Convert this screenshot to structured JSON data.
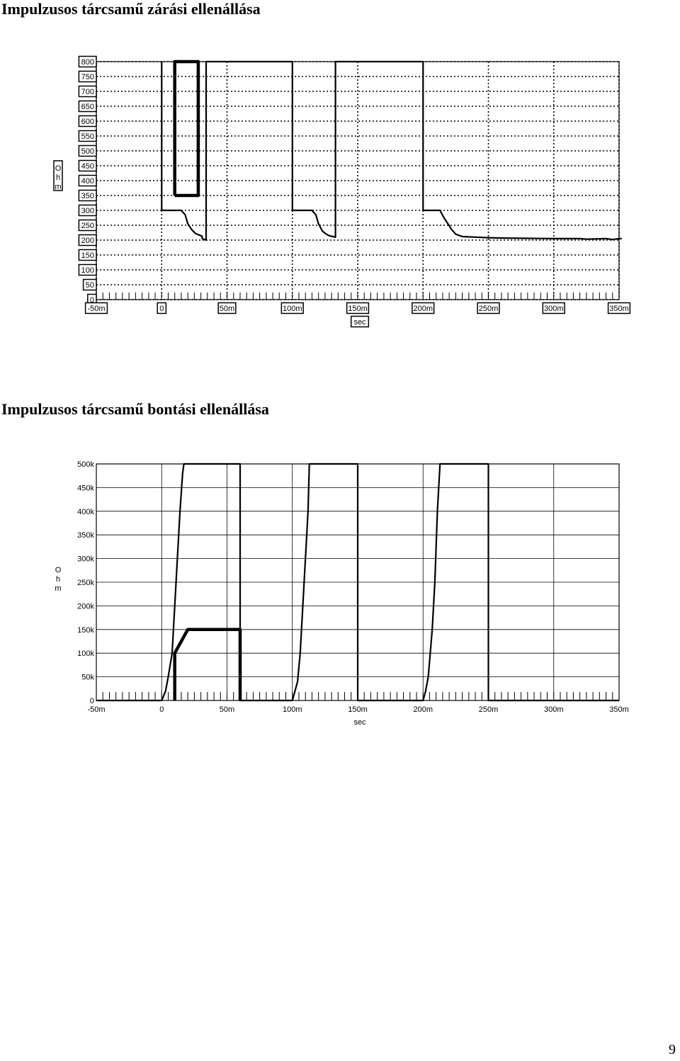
{
  "page": {
    "heading_1": "Impulzusos tárcsamű zárási ellenállása",
    "heading_2": "Impulzusos tárcsamű bontási ellenállása",
    "page_number": "9"
  },
  "chart_data": [
    {
      "type": "line",
      "title": "",
      "xlabel": "sec",
      "ylabel": "Ohm",
      "ylabel_chars": [
        "O",
        "h",
        "m"
      ],
      "xlim": [
        -50,
        350
      ],
      "ylim": [
        0,
        800
      ],
      "x_unit": "ms",
      "xticks": [
        -50,
        0,
        50,
        100,
        150,
        200,
        250,
        300,
        350
      ],
      "xtick_labels": [
        "-50m",
        "0",
        "50m",
        "100m",
        "150m",
        "200m",
        "250m",
        "300m",
        "350m"
      ],
      "yticks": [
        0,
        50,
        100,
        150,
        200,
        250,
        300,
        350,
        400,
        450,
        500,
        550,
        600,
        650,
        700,
        750,
        800
      ],
      "ytick_labels": [
        "0",
        "50",
        "100",
        "150",
        "200",
        "250",
        "300",
        "350",
        "400",
        "450",
        "500",
        "550",
        "600",
        "650",
        "700",
        "750",
        "800"
      ],
      "grid": true,
      "grid_style": "dotted",
      "labels_boxed": true,
      "series": [
        {
          "style": "thin",
          "color": "#000000",
          "x": [
            0,
            0,
            15,
            18,
            20,
            23,
            26,
            28,
            30,
            31,
            31,
            34,
            34,
            100,
            100,
            115,
            118,
            120,
            123,
            126,
            128,
            131,
            133,
            133,
            200,
            200,
            213,
            216,
            219,
            222,
            225,
            230,
            240,
            250,
            260,
            280,
            300,
            320,
            325,
            340,
            345,
            350,
            352
          ],
          "y": [
            800,
            300,
            300,
            285,
            255,
            235,
            222,
            218,
            215,
            213,
            205,
            200,
            800,
            800,
            300,
            300,
            285,
            255,
            230,
            220,
            215,
            212,
            210,
            800,
            800,
            300,
            300,
            275,
            255,
            235,
            220,
            212,
            210,
            208,
            207,
            206,
            205,
            205,
            203,
            205,
            202,
            205,
            205
          ]
        },
        {
          "style": "thick",
          "color": "#000000",
          "x": [
            10,
            10,
            28,
            28,
            10
          ],
          "y": [
            350,
            800,
            800,
            350,
            350
          ]
        }
      ]
    },
    {
      "type": "line",
      "title": "",
      "xlabel": "sec",
      "ylabel": "Ohm",
      "ylabel_chars": [
        "O",
        "h",
        "m"
      ],
      "xlim": [
        -50,
        350
      ],
      "ylim": [
        0,
        500
      ],
      "y_unit": "kOhm",
      "x_unit": "ms",
      "xticks": [
        -50,
        0,
        50,
        100,
        150,
        200,
        250,
        300,
        350
      ],
      "xtick_labels": [
        "-50m",
        "0",
        "50m",
        "100m",
        "150m",
        "200m",
        "250m",
        "300m",
        "350m"
      ],
      "yticks": [
        0,
        50,
        100,
        150,
        200,
        250,
        300,
        350,
        400,
        450,
        500
      ],
      "ytick_labels": [
        "0",
        "50k",
        "100k",
        "150k",
        "200k",
        "250k",
        "300k",
        "350k",
        "400k",
        "450k",
        "500k"
      ],
      "grid": true,
      "grid_style": "solid",
      "labels_boxed": false,
      "series": [
        {
          "style": "thin",
          "color": "#000000",
          "x": [
            -50,
            0,
            3,
            5,
            8,
            10,
            12,
            14,
            16,
            17,
            60,
            60,
            64,
            100,
            104,
            106,
            108,
            110,
            112,
            113,
            150,
            150,
            155,
            200,
            202,
            204,
            207,
            209,
            211,
            213,
            250,
            250,
            255,
            350
          ],
          "y": [
            0,
            0,
            20,
            50,
            100,
            200,
            300,
            400,
            480,
            500,
            500,
            0,
            0,
            0,
            40,
            100,
            200,
            300,
            400,
            500,
            500,
            0,
            0,
            0,
            20,
            50,
            150,
            250,
            400,
            500,
            500,
            0,
            0,
            0
          ]
        },
        {
          "style": "thick",
          "color": "#000000",
          "x": [
            10,
            10,
            20,
            60,
            60
          ],
          "y": [
            0,
            100,
            150,
            150,
            0
          ]
        }
      ]
    }
  ]
}
